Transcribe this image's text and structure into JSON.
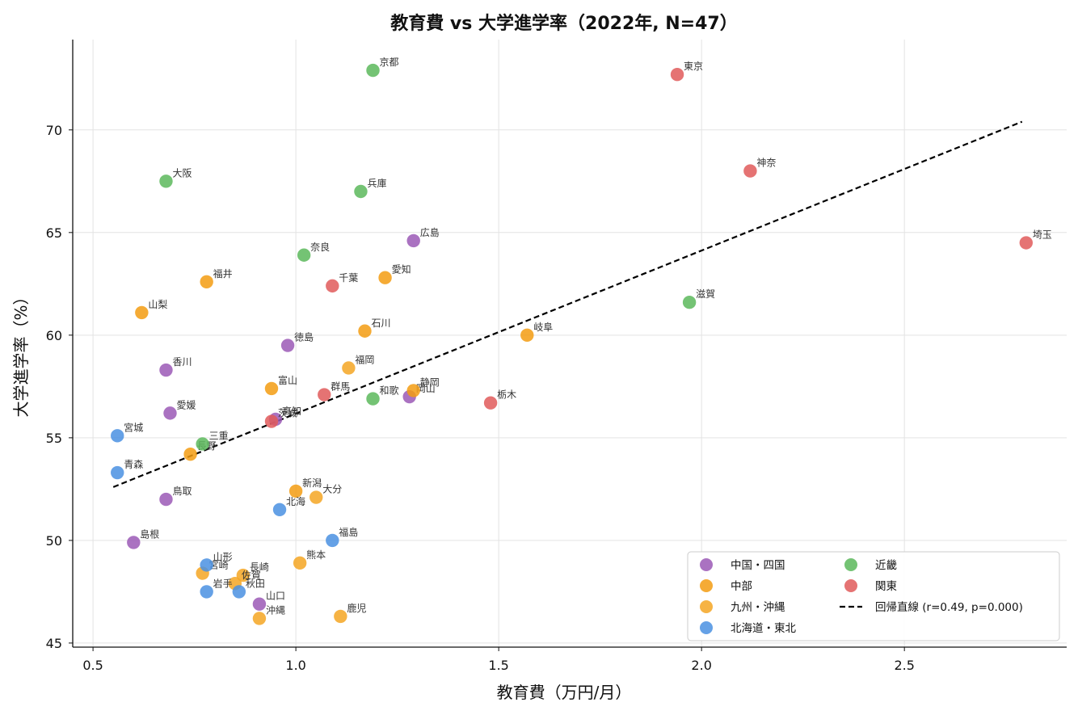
{
  "chart_data": {
    "type": "scatter",
    "title": "教育費 vs 大学進学率（2022年, N=47）",
    "xlabel": "教育費（万円/月）",
    "ylabel": "大学進学率（%）",
    "xlim": [
      0.45,
      2.9
    ],
    "ylim": [
      44.8,
      74.4
    ],
    "xticks": [
      0.5,
      1.0,
      1.5,
      2.0,
      2.5
    ],
    "yticks": [
      45,
      50,
      55,
      60,
      65,
      70
    ],
    "xtick_labels": [
      "0.5",
      "1.0",
      "1.5",
      "2.0",
      "2.5"
    ],
    "ytick_labels": [
      "45",
      "50",
      "55",
      "60",
      "65",
      "70"
    ],
    "grid": true,
    "legend_position": "lower-right",
    "series": [
      {
        "name": "中国・四国",
        "color": "#9b59b6",
        "points": [
          {
            "label": "広島",
            "x": 1.29,
            "y": 64.6
          },
          {
            "label": "徳島",
            "x": 0.98,
            "y": 59.5
          },
          {
            "label": "香川",
            "x": 0.68,
            "y": 58.3
          },
          {
            "label": "岡山",
            "x": 1.28,
            "y": 57.0
          },
          {
            "label": "愛媛",
            "x": 0.69,
            "y": 56.2
          },
          {
            "label": "高知",
            "x": 0.95,
            "y": 55.9
          },
          {
            "label": "鳥取",
            "x": 0.68,
            "y": 52.0
          },
          {
            "label": "島根",
            "x": 0.6,
            "y": 49.9
          },
          {
            "label": "山口",
            "x": 0.91,
            "y": 46.9
          }
        ]
      },
      {
        "name": "中部",
        "color": "#f39c12",
        "points": [
          {
            "label": "愛知",
            "x": 1.22,
            "y": 62.8
          },
          {
            "label": "福井",
            "x": 0.78,
            "y": 62.6
          },
          {
            "label": "山梨",
            "x": 0.62,
            "y": 61.1
          },
          {
            "label": "石川",
            "x": 1.17,
            "y": 60.2
          },
          {
            "label": "岐阜",
            "x": 1.57,
            "y": 60.0
          },
          {
            "label": "富山",
            "x": 0.94,
            "y": 57.4
          },
          {
            "label": "静岡",
            "x": 1.29,
            "y": 57.3
          },
          {
            "label": "長野",
            "x": 0.74,
            "y": 54.2
          },
          {
            "label": "新潟",
            "x": 1.0,
            "y": 52.4
          }
        ]
      },
      {
        "name": "九州・沖縄",
        "color": "#f5a623",
        "points": [
          {
            "label": "福岡",
            "x": 1.13,
            "y": 58.4
          },
          {
            "label": "大分",
            "x": 1.05,
            "y": 52.1
          },
          {
            "label": "熊本",
            "x": 1.01,
            "y": 48.9
          },
          {
            "label": "宮崎",
            "x": 0.77,
            "y": 48.4
          },
          {
            "label": "長崎",
            "x": 0.87,
            "y": 48.3
          },
          {
            "label": "佐賀",
            "x": 0.85,
            "y": 47.9
          },
          {
            "label": "鹿児",
            "x": 1.11,
            "y": 46.3
          },
          {
            "label": "沖縄",
            "x": 0.91,
            "y": 46.2
          }
        ]
      },
      {
        "name": "北海道・東北",
        "color": "#4a90e2",
        "points": [
          {
            "label": "宮城",
            "x": 0.56,
            "y": 55.1
          },
          {
            "label": "青森",
            "x": 0.56,
            "y": 53.3
          },
          {
            "label": "北海",
            "x": 0.96,
            "y": 51.5
          },
          {
            "label": "福島",
            "x": 1.09,
            "y": 50.0
          },
          {
            "label": "山形",
            "x": 0.78,
            "y": 48.8
          },
          {
            "label": "岩手",
            "x": 0.78,
            "y": 47.5
          },
          {
            "label": "秋田",
            "x": 0.86,
            "y": 47.5
          }
        ]
      },
      {
        "name": "近畿",
        "color": "#5cb85c",
        "points": [
          {
            "label": "京都",
            "x": 1.19,
            "y": 72.9
          },
          {
            "label": "大阪",
            "x": 0.68,
            "y": 67.5
          },
          {
            "label": "兵庫",
            "x": 1.16,
            "y": 67.0
          },
          {
            "label": "奈良",
            "x": 1.02,
            "y": 63.9
          },
          {
            "label": "滋賀",
            "x": 1.97,
            "y": 61.6
          },
          {
            "label": "和歌",
            "x": 1.19,
            "y": 56.9
          },
          {
            "label": "三重",
            "x": 0.77,
            "y": 54.7
          }
        ]
      },
      {
        "name": "関東",
        "color": "#e05a5a",
        "points": [
          {
            "label": "東京",
            "x": 1.94,
            "y": 72.7
          },
          {
            "label": "神奈",
            "x": 2.12,
            "y": 68.0
          },
          {
            "label": "埼玉",
            "x": 2.8,
            "y": 64.5
          },
          {
            "label": "千葉",
            "x": 1.09,
            "y": 62.4
          },
          {
            "label": "群馬",
            "x": 1.07,
            "y": 57.1
          },
          {
            "label": "栃木",
            "x": 1.48,
            "y": 56.7
          },
          {
            "label": "茨城",
            "x": 0.94,
            "y": 55.8
          }
        ]
      }
    ],
    "regression": {
      "name": "回帰直線 (r=0.49, p=0.000)",
      "x": [
        0.55,
        2.79
      ],
      "y": [
        52.6,
        70.4
      ],
      "style": "dashed",
      "color": "#000000"
    }
  }
}
